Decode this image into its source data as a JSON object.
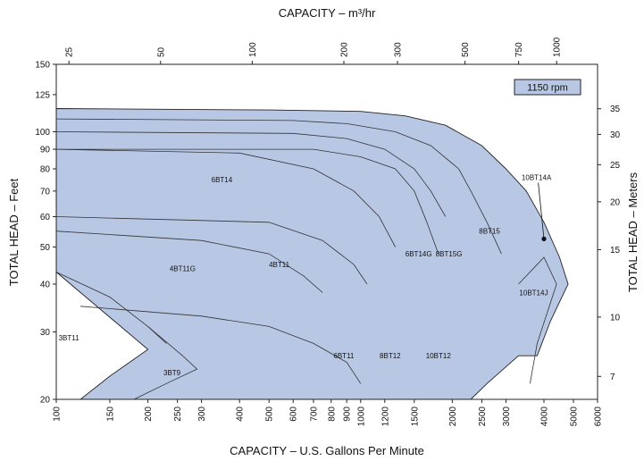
{
  "chart_data": {
    "type": "area",
    "title": "",
    "xlabel": "CAPACITY – U.S. Gallons Per Minute",
    "ylabel": "TOTAL HEAD – Feet",
    "x_top_label": "CAPACITY – m³/hr",
    "y_right_label": "TOTAL HEAD – Meters",
    "x_scale": "log",
    "y_scale": "log",
    "xlim": [
      100,
      6000
    ],
    "ylim": [
      20,
      150
    ],
    "grid": false,
    "annotation": "1150 rpm",
    "x_ticks": [
      100,
      150,
      200,
      250,
      300,
      400,
      500,
      600,
      700,
      800,
      900,
      1000,
      1200,
      1500,
      2000,
      2500,
      3000,
      4000,
      5000,
      6000
    ],
    "y_ticks": [
      20,
      30,
      40,
      50,
      60,
      70,
      80,
      90,
      100,
      125,
      150
    ],
    "x_top_ticks": [
      25,
      50,
      100,
      200,
      300,
      500,
      750,
      1000
    ],
    "y_right_ticks": [
      7,
      10,
      15,
      20,
      25,
      30,
      35
    ],
    "regions": [
      {
        "name": "3BT11",
        "label": [
          110,
          29
        ]
      },
      {
        "name": "3BT9",
        "label": [
          240,
          23.5
        ]
      },
      {
        "name": "4BT11G",
        "label": [
          260,
          44
        ]
      },
      {
        "name": "4BT11",
        "label": [
          540,
          45
        ]
      },
      {
        "name": "6BT14",
        "label": [
          350,
          75
        ]
      },
      {
        "name": "6BT11",
        "label": [
          880,
          26
        ]
      },
      {
        "name": "8BT12",
        "label": [
          1250,
          26
        ]
      },
      {
        "name": "6BT14G",
        "label": [
          1550,
          48
        ]
      },
      {
        "name": "8BT15G",
        "label": [
          1950,
          48
        ]
      },
      {
        "name": "10BT12",
        "label": [
          1800,
          26
        ]
      },
      {
        "name": "8BT15",
        "label": [
          2650,
          55
        ]
      },
      {
        "name": "10BT14J",
        "label": [
          3700,
          38
        ]
      },
      {
        "name": "10BT14A",
        "label": [
          3780,
          76
        ],
        "pointer_to": [
          4000,
          52.5
        ]
      }
    ],
    "boundaries": [
      [
        [
          100,
          115
        ],
        [
          500,
          114
        ],
        [
          1000,
          113
        ],
        [
          1400,
          110
        ],
        [
          1900,
          104
        ],
        [
          2500,
          92
        ],
        [
          3000,
          80
        ],
        [
          3500,
          70
        ],
        [
          4000,
          58
        ],
        [
          4500,
          47
        ],
        [
          4800,
          40
        ],
        [
          4200,
          32
        ],
        [
          3800,
          26
        ],
        [
          3300,
          26
        ],
        [
          2600,
          22
        ],
        [
          2300,
          20
        ],
        [
          120,
          20
        ],
        [
          150,
          23
        ],
        [
          200,
          27
        ],
        [
          100,
          43
        ]
      ],
      [
        [
          100,
          108
        ],
        [
          600,
          107
        ],
        [
          900,
          105
        ],
        [
          1300,
          100
        ],
        [
          1700,
          92
        ],
        [
          2100,
          80
        ],
        [
          2300,
          70
        ],
        [
          2600,
          58
        ],
        [
          2900,
          48
        ]
      ],
      [
        [
          100,
          100
        ],
        [
          600,
          99
        ],
        [
          900,
          96
        ],
        [
          1200,
          90
        ],
        [
          1500,
          80
        ],
        [
          1700,
          70
        ],
        [
          1900,
          60
        ]
      ],
      [
        [
          100,
          90
        ],
        [
          700,
          90
        ],
        [
          1000,
          86
        ],
        [
          1300,
          80
        ],
        [
          1500,
          70
        ],
        [
          1650,
          58
        ],
        [
          1800,
          48
        ]
      ],
      [
        [
          100,
          90
        ],
        [
          400,
          88
        ],
        [
          700,
          80
        ],
        [
          950,
          70
        ],
        [
          1150,
          60
        ],
        [
          1300,
          50
        ]
      ],
      [
        [
          100,
          60
        ],
        [
          500,
          58
        ],
        [
          750,
          52
        ],
        [
          950,
          45
        ],
        [
          1050,
          40
        ]
      ],
      [
        [
          100,
          55
        ],
        [
          300,
          52
        ],
        [
          500,
          48
        ],
        [
          650,
          42
        ],
        [
          750,
          38
        ]
      ],
      [
        [
          120,
          35
        ],
        [
          300,
          33
        ],
        [
          500,
          31
        ],
        [
          700,
          28
        ],
        [
          900,
          25
        ],
        [
          1000,
          22
        ]
      ],
      [
        [
          100,
          43
        ],
        [
          150,
          37
        ],
        [
          200,
          31
        ],
        [
          230,
          28
        ]
      ],
      [
        [
          200,
          31
        ],
        [
          260,
          26
        ],
        [
          290,
          24
        ],
        [
          230,
          22
        ],
        [
          180,
          20
        ]
      ],
      [
        [
          3300,
          40
        ],
        [
          3700,
          44
        ],
        [
          4000,
          47
        ],
        [
          4400,
          40
        ],
        [
          3800,
          28
        ],
        [
          3600,
          22
        ]
      ]
    ]
  }
}
